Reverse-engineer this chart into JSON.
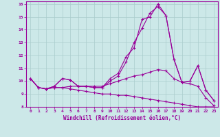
{
  "xlabel": "Windchill (Refroidissement éolien,°C)",
  "bg_color": "#cce8e8",
  "line_color": "#990099",
  "grid_color": "#aacccc",
  "x": [
    0,
    1,
    2,
    3,
    4,
    5,
    6,
    7,
    8,
    9,
    10,
    11,
    12,
    13,
    14,
    15,
    16,
    17,
    18,
    19,
    20,
    21,
    22,
    23
  ],
  "line1": [
    10.2,
    9.5,
    9.4,
    9.6,
    10.2,
    10.1,
    9.6,
    9.6,
    9.5,
    9.5,
    10.2,
    10.6,
    11.9,
    12.6,
    14.8,
    15.0,
    16.0,
    15.1,
    11.7,
    9.9,
    10.0,
    11.2,
    9.3,
    8.5
  ],
  "line2": [
    10.2,
    9.5,
    9.4,
    9.6,
    10.2,
    10.1,
    9.6,
    9.6,
    9.5,
    9.5,
    10.0,
    10.4,
    11.5,
    13.0,
    14.1,
    15.3,
    15.8,
    15.1,
    11.7,
    9.9,
    10.0,
    11.2,
    9.3,
    8.5
  ],
  "line3": [
    10.2,
    9.5,
    9.4,
    9.5,
    9.5,
    9.6,
    9.6,
    9.6,
    9.6,
    9.6,
    9.8,
    10.0,
    10.2,
    10.4,
    10.5,
    10.7,
    10.9,
    10.8,
    10.2,
    9.9,
    9.8,
    9.6,
    8.7,
    8.1
  ],
  "line4": [
    10.2,
    9.5,
    9.4,
    9.5,
    9.5,
    9.4,
    9.3,
    9.2,
    9.1,
    9.0,
    9.0,
    8.9,
    8.9,
    8.8,
    8.7,
    8.6,
    8.5,
    8.4,
    8.3,
    8.2,
    8.1,
    8.0,
    8.0,
    8.0
  ],
  "ylim": [
    8,
    16
  ],
  "xlim": [
    -0.5,
    23.5
  ],
  "yticks": [
    8,
    9,
    10,
    11,
    12,
    13,
    14,
    15,
    16
  ],
  "xticks": [
    0,
    1,
    2,
    3,
    4,
    5,
    6,
    7,
    8,
    9,
    10,
    11,
    12,
    13,
    14,
    15,
    16,
    17,
    18,
    19,
    20,
    21,
    22,
    23
  ]
}
